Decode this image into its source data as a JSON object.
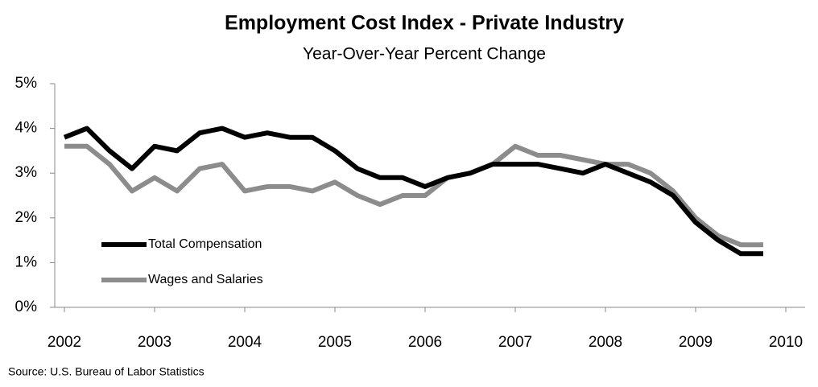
{
  "chart_data": {
    "type": "line",
    "title": "Employment Cost Index - Private Industry",
    "subtitle": "Year-Over-Year Percent Change",
    "source": "Source: U.S. Bureau of Labor Statistics",
    "x": [
      2002,
      2002.25,
      2002.5,
      2002.75,
      2003,
      2003.25,
      2003.5,
      2003.75,
      2004,
      2004.25,
      2004.5,
      2004.75,
      2005,
      2005.25,
      2005.5,
      2005.75,
      2006,
      2006.25,
      2006.5,
      2006.75,
      2007,
      2007.25,
      2007.5,
      2007.75,
      2008,
      2008.25,
      2008.5,
      2008.75,
      2009,
      2009.25,
      2009.5,
      2009.75
    ],
    "series": [
      {
        "name": "Total Compensation",
        "color": "#000000",
        "values": [
          3.8,
          4.0,
          3.5,
          3.1,
          3.6,
          3.5,
          3.9,
          4.0,
          3.8,
          3.9,
          3.8,
          3.8,
          3.5,
          3.1,
          2.9,
          2.9,
          2.7,
          2.9,
          3.0,
          3.2,
          3.2,
          3.2,
          3.1,
          3.0,
          3.2,
          3.0,
          2.8,
          2.5,
          1.9,
          1.5,
          1.2,
          1.2
        ]
      },
      {
        "name": "Wages and Salaries",
        "color": "#8c8c8c",
        "values": [
          3.6,
          3.6,
          3.2,
          2.6,
          2.9,
          2.6,
          3.1,
          3.2,
          2.6,
          2.7,
          2.7,
          2.6,
          2.8,
          2.5,
          2.3,
          2.5,
          2.5,
          2.9,
          3.0,
          3.2,
          3.6,
          3.4,
          3.4,
          3.3,
          3.2,
          3.2,
          3.0,
          2.6,
          2.0,
          1.6,
          1.4,
          1.4
        ]
      }
    ],
    "xlim": [
      2002,
      2010
    ],
    "xticks": [
      2002,
      2003,
      2004,
      2005,
      2006,
      2007,
      2008,
      2009,
      2010
    ],
    "ylim": [
      0,
      5
    ],
    "yticks": [
      {
        "value": 0,
        "label": "0%"
      },
      {
        "value": 1,
        "label": "1%"
      },
      {
        "value": 2,
        "label": "2%"
      },
      {
        "value": 3,
        "label": "3%"
      },
      {
        "value": 4,
        "label": "4%"
      },
      {
        "value": 5,
        "label": "5%"
      }
    ],
    "grid": false,
    "legend": "lower left"
  }
}
